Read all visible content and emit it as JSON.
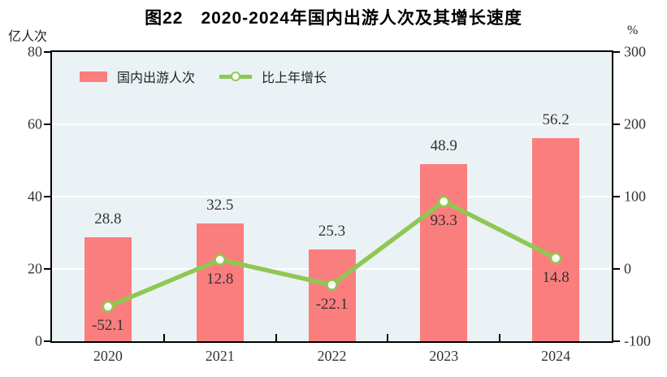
{
  "title": "图22　2020-2024年国内出游人次及其增长速度",
  "axes": {
    "left_unit": "亿人次",
    "right_unit": "%"
  },
  "legend": {
    "bar_label": "国内出游人次",
    "line_label": "比上年增长"
  },
  "chart_data": {
    "type": "bar",
    "title": "图22　2020-2024年国内出游人次及其增长速度",
    "categories": [
      "2020",
      "2021",
      "2022",
      "2023",
      "2024"
    ],
    "series": [
      {
        "name": "国内出游人次",
        "type": "bar",
        "axis": "left",
        "values": [
          28.8,
          32.5,
          25.3,
          48.9,
          56.2
        ]
      },
      {
        "name": "比上年增长",
        "type": "line",
        "axis": "right",
        "values": [
          -52.1,
          12.8,
          -22.1,
          93.3,
          14.8
        ]
      }
    ],
    "left_axis": {
      "label": "亿人次",
      "min": 0,
      "max": 80,
      "ticks": [
        0,
        20,
        40,
        60,
        80
      ]
    },
    "right_axis": {
      "label": "%",
      "min": -100,
      "max": 300,
      "ticks": [
        -100,
        0,
        100,
        200,
        300
      ]
    },
    "grid": true,
    "legend_position": "top-left"
  },
  "colors": {
    "bar": "#fb7e7e",
    "line": "#8ec852",
    "marker_fill": "#fdfef6",
    "plot_bg": "#ebf2f5",
    "grid": "#ffffff",
    "text": "#333333"
  }
}
